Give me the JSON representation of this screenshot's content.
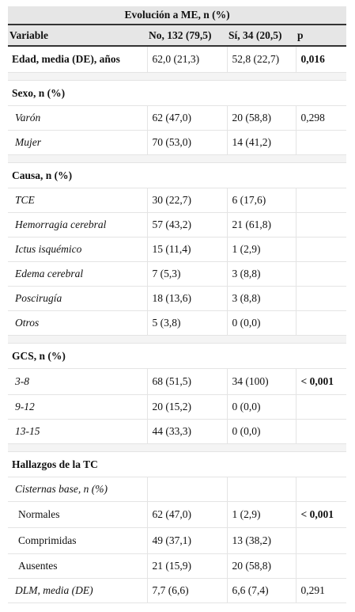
{
  "table": {
    "title": "Evolución a ME, n (%)",
    "headers": {
      "variable": "Variable",
      "no": "No, 132 (79,5)",
      "si": "Sí, 34 (20,5)",
      "p": "p"
    },
    "edad": {
      "label": "Edad, media (DE), años",
      "no": "62,0 (21,3)",
      "si": "52,8 (22,7)",
      "p": "0,016"
    },
    "sexo": {
      "header": "Sexo, n (%)",
      "rows": [
        {
          "label": "Varón",
          "no": "62 (47,0)",
          "si": "20 (58,8)",
          "p": "0,298"
        },
        {
          "label": "Mujer",
          "no": "70 (53,0)",
          "si": "14 (41,2)",
          "p": ""
        }
      ]
    },
    "causa": {
      "header": "Causa, n (%)",
      "rows": [
        {
          "label": "TCE",
          "no": "30 (22,7)",
          "si": "6 (17,6)",
          "p": ""
        },
        {
          "label": "Hemorragia cerebral",
          "no": "57 (43,2)",
          "si": "21 (61,8)",
          "p": ""
        },
        {
          "label": "Ictus isquémico",
          "no": "15 (11,4)",
          "si": "1 (2,9)",
          "p": ""
        },
        {
          "label": "Edema cerebral",
          "no": "7 (5,3)",
          "si": "3 (8,8)",
          "p": ""
        },
        {
          "label": "Poscirugía",
          "no": "18 (13,6)",
          "si": "3 (8,8)",
          "p": ""
        },
        {
          "label": "Otros",
          "no": "5 (3,8)",
          "si": "0 (0,0)",
          "p": ""
        }
      ]
    },
    "gcs": {
      "header": "GCS, n (%)",
      "rows": [
        {
          "label": "3-8",
          "no": "68 (51,5)",
          "si": "34 (100)",
          "p": "< 0,001"
        },
        {
          "label": "9-12",
          "no": "20 (15,2)",
          "si": "0 (0,0)",
          "p": ""
        },
        {
          "label": "13-15",
          "no": "44 (33,3)",
          "si": "0 (0,0)",
          "p": ""
        }
      ]
    },
    "tc": {
      "header": "Hallazgos de la TC",
      "cisternas": {
        "label": "Cisternas base, n (%)",
        "no": "",
        "si": "",
        "p": ""
      },
      "cisternas_rows": [
        {
          "label": "Normales",
          "no": "62 (47,0)",
          "si": "1 (2,9)",
          "p": "< 0,001"
        },
        {
          "label": "Comprimidas",
          "no": "49 (37,1)",
          "si": "13 (38,2)",
          "p": ""
        },
        {
          "label": "Ausentes",
          "no": "21 (15,9)",
          "si": "20 (58,8)",
          "p": ""
        }
      ],
      "dlm": {
        "label": "DLM, media (DE)",
        "no": "7,7 (6,6)",
        "si": "6,6 (7,4)",
        "p": "0,291"
      }
    }
  }
}
